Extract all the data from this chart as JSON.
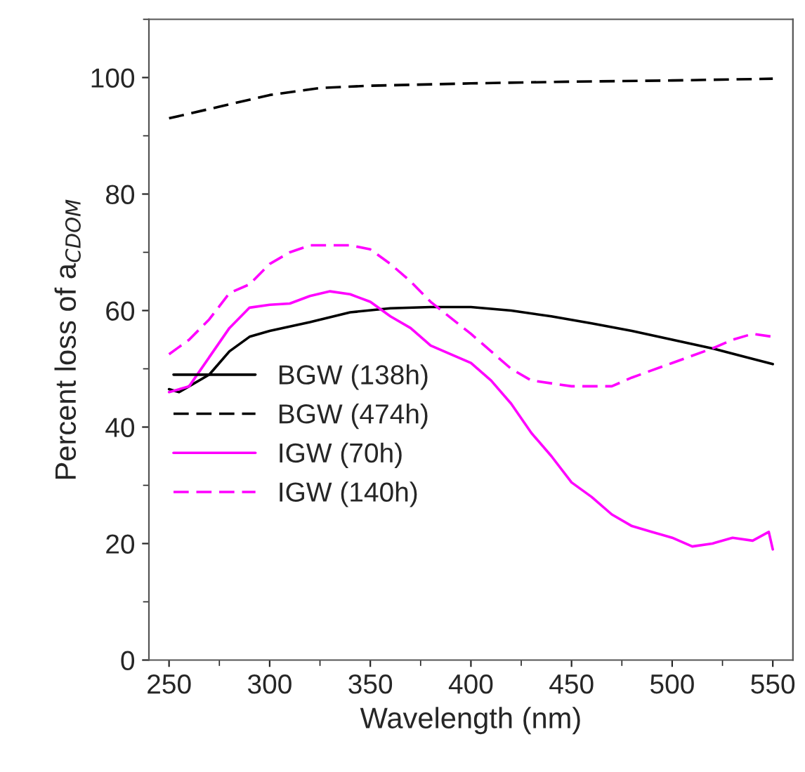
{
  "chart_data": {
    "type": "line",
    "xlabel": "Wavelength (nm)",
    "ylabel": "Percent loss of a$_{CDOM}$",
    "xlim": [
      240,
      560
    ],
    "xticks": [
      250,
      300,
      350,
      400,
      450,
      500,
      550
    ],
    "ylim": [
      0,
      110
    ],
    "yticks": [
      0,
      20,
      40,
      60,
      80,
      100
    ],
    "grid": false,
    "legend": "left",
    "series": [
      {
        "name": "BGW (138h)",
        "color": "#000000",
        "line_style": "solid",
        "x": [
          250,
          255,
          260,
          270,
          280,
          290,
          300,
          320,
          340,
          360,
          380,
          400,
          420,
          440,
          460,
          480,
          500,
          520,
          550
        ],
        "values": [
          46.5,
          46,
          47,
          49,
          53,
          55.5,
          56.5,
          58,
          59.7,
          60.4,
          60.6,
          60.6,
          60,
          59,
          57.8,
          56.5,
          55,
          53.5,
          50.8
        ]
      },
      {
        "name": "BGW (474h)",
        "color": "#000000",
        "line_style": "dashed",
        "x": [
          250,
          275,
          300,
          325,
          350,
          400,
          450,
          500,
          550
        ],
        "values": [
          93,
          95,
          97,
          98.2,
          98.6,
          99,
          99.3,
          99.5,
          99.8
        ]
      },
      {
        "name": "IGW (70h)",
        "color": "#ff00ff",
        "line_style": "solid",
        "x": [
          250,
          260,
          270,
          280,
          290,
          300,
          310,
          320,
          330,
          340,
          350,
          360,
          370,
          380,
          400,
          410,
          420,
          430,
          440,
          450,
          460,
          470,
          480,
          490,
          500,
          510,
          520,
          530,
          540,
          548,
          550
        ],
        "values": [
          46,
          47,
          52,
          57,
          60.5,
          61,
          61.2,
          62.5,
          63.3,
          62.8,
          61.5,
          59,
          57,
          54,
          51,
          48,
          44,
          39,
          35,
          30.5,
          28,
          25,
          23,
          22,
          21,
          19.5,
          20,
          21,
          20.5,
          22,
          19
        ]
      },
      {
        "name": "IGW (140h)",
        "color": "#ff00ff",
        "line_style": "dashed",
        "x": [
          250,
          260,
          270,
          280,
          290,
          300,
          310,
          320,
          340,
          350,
          360,
          370,
          380,
          400,
          420,
          430,
          450,
          470,
          480,
          500,
          520,
          530,
          540,
          550
        ],
        "values": [
          52.5,
          55,
          58.5,
          63,
          64.5,
          68,
          70,
          71.2,
          71.2,
          70.5,
          68,
          65,
          61.5,
          56,
          50,
          48,
          47,
          47,
          48.5,
          51,
          53.5,
          55,
          56,
          55.5
        ]
      }
    ]
  }
}
